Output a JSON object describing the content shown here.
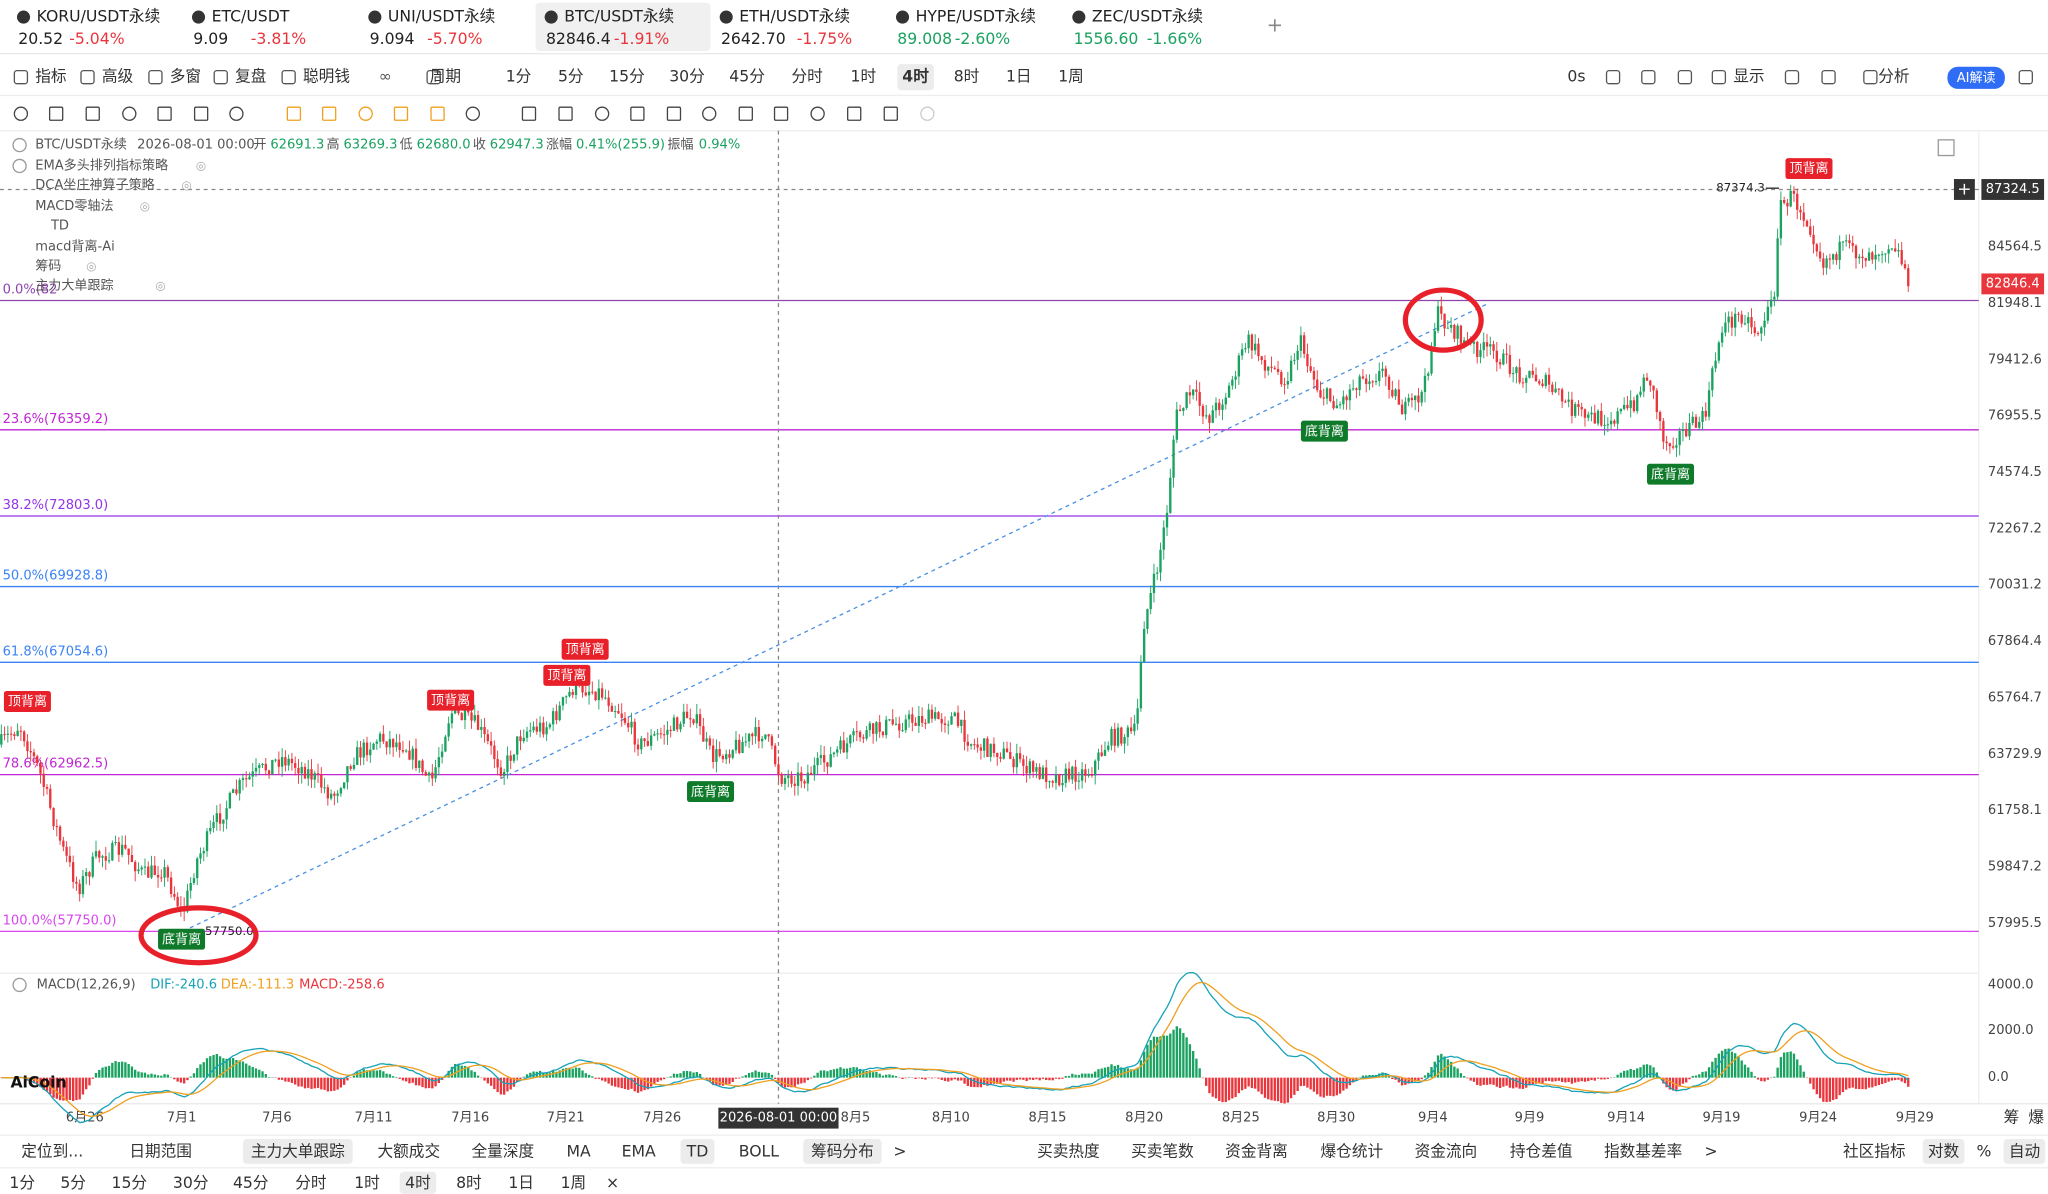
{
  "tabs": [
    {
      "symbol": "KORU/USDT永续",
      "price": "20.52",
      "change": "-5.04%"
    },
    {
      "symbol": "ETC/USDT",
      "price": "9.09",
      "change": "-3.81%"
    },
    {
      "symbol": "UNI/USDT永续",
      "price": "9.094",
      "change": "-5.70%"
    },
    {
      "symbol": "BTC/USDT永续",
      "price": "82846.4",
      "change": "-1.91%"
    },
    {
      "symbol": "ETH/USDT永续",
      "price": "2642.70",
      "change": "-1.75%"
    },
    {
      "symbol": "HYPE/USDT永续",
      "price": "89.008",
      "change": "-2.60%"
    },
    {
      "symbol": "ZEC/USDT永续",
      "price": "1556.60",
      "change": "-1.66%"
    }
  ],
  "toolbar": {
    "left": [
      "指标",
      "高级",
      "多窗",
      "复盘",
      "聪明钱",
      "周期"
    ],
    "periods": [
      "1分",
      "5分",
      "15分",
      "30分",
      "45分",
      "分时",
      "1时",
      "4时",
      "8时",
      "1日",
      "1周"
    ],
    "right": [
      "0s",
      "显示",
      "分析"
    ],
    "ai": "AI解读"
  },
  "info": {
    "symbol": "BTC/USDT永续",
    "time": "2026-08-01 00:00",
    "open_label": "开",
    "open": "62691.3",
    "high_label": "高",
    "high": "63269.3",
    "low_label": "低",
    "low": "62680.0",
    "close_label": "收",
    "close": "62947.3",
    "change_label": "涨幅",
    "change": "0.41%(255.9)",
    "amp_label": "振幅",
    "amp": "0.94%"
  },
  "indicators": [
    "EMA多头排列指标策略",
    "DCA坐庄神算子策略",
    "MACD零轴法",
    "TD",
    "macd背离-Ai",
    "筹码",
    "主力大单跟踪"
  ],
  "fib_levels": [
    "0.0%(82",
    "23.6%(76359.2)",
    "38.2%(72803.0)",
    "50.0%(69928.8)",
    "61.8%(67054.6)",
    "78.6%(62962.5)",
    "100.0%(57750.0)"
  ],
  "price_axis": [
    "84564.5",
    "81948.1",
    "79412.6",
    "76955.5",
    "74574.5",
    "72267.2",
    "70031.2",
    "67864.4",
    "65764.7",
    "63729.9",
    "61758.1",
    "59847.2",
    "57995.5"
  ],
  "cross_price": "87324.5",
  "last_price": "82846.4",
  "high_mark": "87374.3",
  "low_mark": "57750.0",
  "signals": [
    "顶背离",
    "顶背离",
    "顶背离",
    "顶背离",
    "顶背离",
    "底背离",
    "底背离",
    "底背离",
    "底背离"
  ],
  "dates": [
    "6月26",
    "7月1",
    "7月6",
    "7月11",
    "7月16",
    "7月21",
    "7月26",
    "2026-08-01 00:00",
    "8月5",
    "8月10",
    "8月15",
    "8月20",
    "8月25",
    "8月30",
    "9月4",
    "9月9",
    "9月14",
    "9月19",
    "9月24",
    "9月29"
  ],
  "axis_corner": [
    "筹",
    "爆"
  ],
  "macd": {
    "name": "MACD(12,26,9)",
    "dif": "DIF:-240.6",
    "dea": "DEA:-111.3",
    "macd": "MACD:-258.6",
    "axis": [
      "4000.0",
      "2000.0",
      "0.0"
    ]
  },
  "logo": "AiCoin",
  "bottom_bar": {
    "left": [
      "定位到...",
      "日期范围",
      "主力大单跟踪",
      "大额成交",
      "全量深度",
      "MA",
      "EMA",
      "TD",
      "BOLL",
      "筹码分布",
      ">"
    ],
    "middle": [
      "买卖热度",
      "买卖笔数",
      "资金背离",
      "爆仓统计",
      "资金流向",
      "持仓差值",
      "指数基差率",
      ">"
    ],
    "right": [
      "社区指标",
      "对数",
      "%",
      "自动"
    ]
  },
  "period_bar": [
    "1分",
    "5分",
    "15分",
    "30分",
    "45分",
    "分时",
    "1时",
    "4时",
    "8时",
    "1日",
    "1周",
    "×"
  ]
}
